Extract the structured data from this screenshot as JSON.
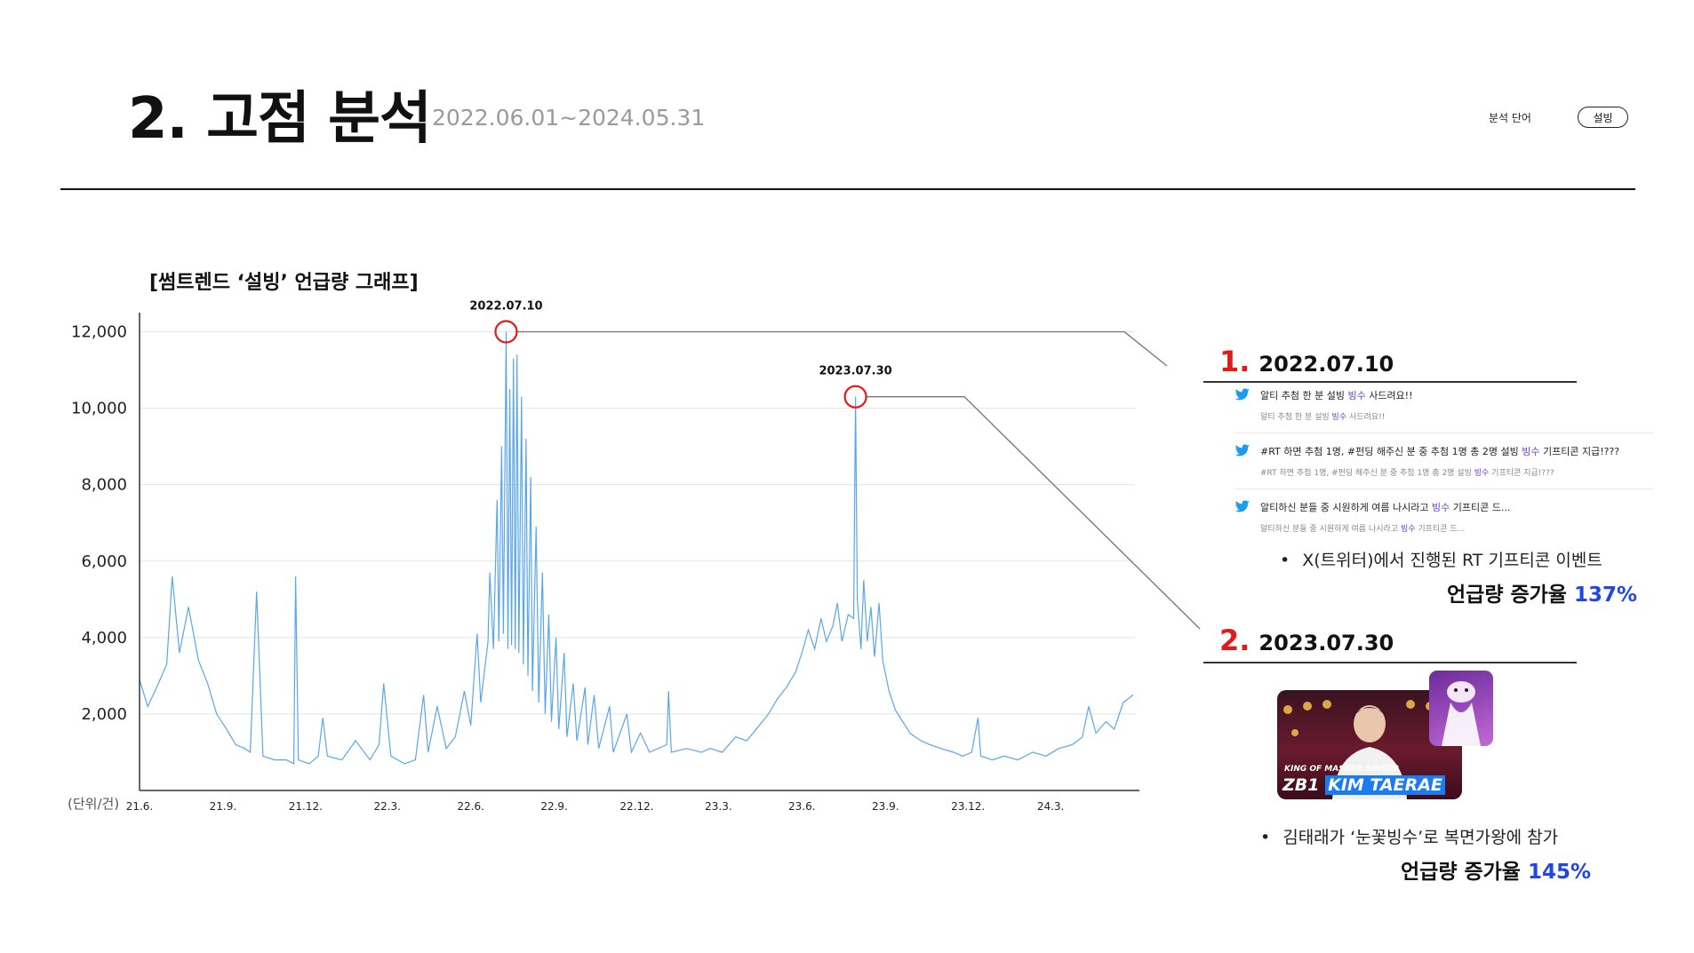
{
  "header": {
    "title": "2. 고점 분석",
    "period": "2022.06.01~2024.05.31",
    "keyword_label": "분석 단어",
    "keyword": "설빙"
  },
  "chart_data": {
    "type": "line",
    "title": "[썸트렌드 ‘설빙’ 언급량 그래프]",
    "unit_label": "(단위/건)",
    "ylim": [
      0,
      12500
    ],
    "y_ticks": [
      2000,
      4000,
      6000,
      8000,
      10000,
      12000
    ],
    "y_tick_labels": [
      "2,000",
      "4,000",
      "6,000",
      "8,000",
      "10,000",
      "12,000"
    ],
    "x_ticks": [
      "2021-06-01",
      "2021-09-01",
      "2021-12-01",
      "2022-03-01",
      "2022-06-01",
      "2022-09-01",
      "2022-12-01",
      "2023-03-01",
      "2023-06-01",
      "2023-09-01",
      "2023-12-01",
      "2024-03-01"
    ],
    "x_tick_labels": [
      "21.6.",
      "21.9.",
      "21.12.",
      "22.3.",
      "22.6.",
      "22.9.",
      "22.12.",
      "23.3.",
      "23.6.",
      "23.9.",
      "23.12.",
      "24.3."
    ],
    "grid": true,
    "line_color": "#5aa6ea",
    "series": [
      {
        "points": [
          [
            "2021-06-01",
            2900
          ],
          [
            "2021-06-10",
            2200
          ],
          [
            "2021-06-20",
            2700
          ],
          [
            "2021-07-01",
            3300
          ],
          [
            "2021-07-07",
            5600
          ],
          [
            "2021-07-15",
            3600
          ],
          [
            "2021-07-25",
            4800
          ],
          [
            "2021-08-05",
            3400
          ],
          [
            "2021-08-15",
            2800
          ],
          [
            "2021-08-25",
            2000
          ],
          [
            "2021-09-05",
            1600
          ],
          [
            "2021-09-15",
            1200
          ],
          [
            "2021-09-25",
            1100
          ],
          [
            "2021-10-01",
            1000
          ],
          [
            "2021-10-08",
            5200
          ],
          [
            "2021-10-15",
            900
          ],
          [
            "2021-10-28",
            800
          ],
          [
            "2021-11-10",
            800
          ],
          [
            "2021-11-18",
            700
          ],
          [
            "2021-11-20",
            5600
          ],
          [
            "2021-11-23",
            800
          ],
          [
            "2021-12-05",
            700
          ],
          [
            "2021-12-15",
            900
          ],
          [
            "2021-12-20",
            1900
          ],
          [
            "2021-12-25",
            900
          ],
          [
            "2022-01-10",
            800
          ],
          [
            "2022-01-25",
            1300
          ],
          [
            "2022-02-10",
            800
          ],
          [
            "2022-02-20",
            1200
          ],
          [
            "2022-02-25",
            2800
          ],
          [
            "2022-03-05",
            900
          ],
          [
            "2022-03-20",
            700
          ],
          [
            "2022-04-01",
            800
          ],
          [
            "2022-04-10",
            2500
          ],
          [
            "2022-04-15",
            1000
          ],
          [
            "2022-04-25",
            2200
          ],
          [
            "2022-05-05",
            1100
          ],
          [
            "2022-05-15",
            1400
          ],
          [
            "2022-05-25",
            2600
          ],
          [
            "2022-06-01",
            1700
          ],
          [
            "2022-06-08",
            4100
          ],
          [
            "2022-06-12",
            2300
          ],
          [
            "2022-06-20",
            3900
          ],
          [
            "2022-06-22",
            5700
          ],
          [
            "2022-06-26",
            3700
          ],
          [
            "2022-06-30",
            7600
          ],
          [
            "2022-07-02",
            3900
          ],
          [
            "2022-07-05",
            9000
          ],
          [
            "2022-07-07",
            4100
          ],
          [
            "2022-07-10",
            12000
          ],
          [
            "2022-07-12",
            3700
          ],
          [
            "2022-07-14",
            10500
          ],
          [
            "2022-07-16",
            3800
          ],
          [
            "2022-07-18",
            11300
          ],
          [
            "2022-07-20",
            3700
          ],
          [
            "2022-07-22",
            11400
          ],
          [
            "2022-07-24",
            3600
          ],
          [
            "2022-07-27",
            10300
          ],
          [
            "2022-07-29",
            3300
          ],
          [
            "2022-08-01",
            9200
          ],
          [
            "2022-08-03",
            3000
          ],
          [
            "2022-08-06",
            8200
          ],
          [
            "2022-08-08",
            2600
          ],
          [
            "2022-08-12",
            6900
          ],
          [
            "2022-08-15",
            2300
          ],
          [
            "2022-08-19",
            5700
          ],
          [
            "2022-08-22",
            2000
          ],
          [
            "2022-08-26",
            4600
          ],
          [
            "2022-08-29",
            1800
          ],
          [
            "2022-09-03",
            4000
          ],
          [
            "2022-09-06",
            1600
          ],
          [
            "2022-09-12",
            3600
          ],
          [
            "2022-09-15",
            1400
          ],
          [
            "2022-09-22",
            2800
          ],
          [
            "2022-09-26",
            1300
          ],
          [
            "2022-10-05",
            2700
          ],
          [
            "2022-10-08",
            1200
          ],
          [
            "2022-10-15",
            2500
          ],
          [
            "2022-10-20",
            1100
          ],
          [
            "2022-11-01",
            2200
          ],
          [
            "2022-11-05",
            1000
          ],
          [
            "2022-11-20",
            2000
          ],
          [
            "2022-11-25",
            1000
          ],
          [
            "2022-12-05",
            1500
          ],
          [
            "2022-12-15",
            1000
          ],
          [
            "2023-01-03",
            1200
          ],
          [
            "2023-01-05",
            2600
          ],
          [
            "2023-01-08",
            1000
          ],
          [
            "2023-01-25",
            1100
          ],
          [
            "2023-02-10",
            1000
          ],
          [
            "2023-02-20",
            1100
          ],
          [
            "2023-03-05",
            1000
          ],
          [
            "2023-03-20",
            1400
          ],
          [
            "2023-04-01",
            1300
          ],
          [
            "2023-04-15",
            1700
          ],
          [
            "2023-04-25",
            2000
          ],
          [
            "2023-05-05",
            2400
          ],
          [
            "2023-05-15",
            2700
          ],
          [
            "2023-05-25",
            3100
          ],
          [
            "2023-06-01",
            3600
          ],
          [
            "2023-06-08",
            4200
          ],
          [
            "2023-06-15",
            3700
          ],
          [
            "2023-06-22",
            4500
          ],
          [
            "2023-06-28",
            3900
          ],
          [
            "2023-07-05",
            4300
          ],
          [
            "2023-07-10",
            4900
          ],
          [
            "2023-07-15",
            3900
          ],
          [
            "2023-07-22",
            4600
          ],
          [
            "2023-07-28",
            4500
          ],
          [
            "2023-07-30",
            10300
          ],
          [
            "2023-08-01",
            5000
          ],
          [
            "2023-08-05",
            3700
          ],
          [
            "2023-08-08",
            5500
          ],
          [
            "2023-08-12",
            3900
          ],
          [
            "2023-08-16",
            4800
          ],
          [
            "2023-08-20",
            3500
          ],
          [
            "2023-08-25",
            4900
          ],
          [
            "2023-08-29",
            3400
          ],
          [
            "2023-09-05",
            2600
          ],
          [
            "2023-09-12",
            2100
          ],
          [
            "2023-09-20",
            1800
          ],
          [
            "2023-09-28",
            1500
          ],
          [
            "2023-10-10",
            1300
          ],
          [
            "2023-10-20",
            1200
          ],
          [
            "2023-11-01",
            1100
          ],
          [
            "2023-11-15",
            1000
          ],
          [
            "2023-11-25",
            900
          ],
          [
            "2023-12-05",
            1000
          ],
          [
            "2023-12-12",
            1900
          ],
          [
            "2023-12-15",
            900
          ],
          [
            "2023-12-28",
            800
          ],
          [
            "2024-01-10",
            900
          ],
          [
            "2024-01-25",
            800
          ],
          [
            "2024-02-10",
            1000
          ],
          [
            "2024-02-25",
            900
          ],
          [
            "2024-03-10",
            1100
          ],
          [
            "2024-03-25",
            1200
          ],
          [
            "2024-04-05",
            1400
          ],
          [
            "2024-04-12",
            2200
          ],
          [
            "2024-04-20",
            1500
          ],
          [
            "2024-05-01",
            1800
          ],
          [
            "2024-05-10",
            1600
          ],
          [
            "2024-05-20",
            2300
          ],
          [
            "2024-05-31",
            2500
          ]
        ]
      }
    ],
    "annotations": [
      {
        "label": "2022.07.10",
        "x": "2022-07-10",
        "y": 12000
      },
      {
        "label": "2023.07.30",
        "x": "2023-07-30",
        "y": 10300
      }
    ]
  },
  "right_panel": {
    "peak1": {
      "number": "1.",
      "date": "2022.07.10",
      "tweets": [
        {
          "pre": "알티 추첨 한 분 설빙 ",
          "hl": "빙수",
          "post": " 사드려요!!",
          "sub_pre": "알티 추첨 한 분 설빙 ",
          "sub_hl": "빙수",
          "sub_post": " 사드려요!!"
        },
        {
          "pre": "#RT 하면 추첨 1명, #펀딩 해주신 분 중 추첨 1명 총 2명 설빙 ",
          "hl": "빙수",
          "post": " 기프티콘 지급!???",
          "sub_pre": "#RT 하면 추첨 1명, #펀딩 해주신 분 중 추첨 1명 총 2명 설빙 ",
          "sub_hl": "빙수",
          "sub_post": " 기프티콘 지급!???"
        },
        {
          "pre": "알티하신 분들 중 시원하게 여름 나시라고 ",
          "hl": "빙수",
          "post": " 기프티콘 드...",
          "sub_pre": "알티하신 분들 중 시원하게 여름 나시라고 ",
          "sub_hl": "빙수",
          "sub_post": " 기프티콘 드..."
        }
      ],
      "bullet": "X(트위터)에서 진행된  RT 기프티콘 이벤트",
      "rate_label": "언급량 증가율",
      "rate_value": "137%"
    },
    "peak2": {
      "number": "2.",
      "date": "2023.07.30",
      "thumb_small": "KING OF MASKED SINGER",
      "thumb_big_a": "ZB1",
      "thumb_big_b": "KIM TAERAE",
      "bullet": "김태래가 ‘눈꽃빙수’로 복면가왕에 참가",
      "rate_label": "언급량 증가율",
      "rate_value": "145%"
    }
  }
}
